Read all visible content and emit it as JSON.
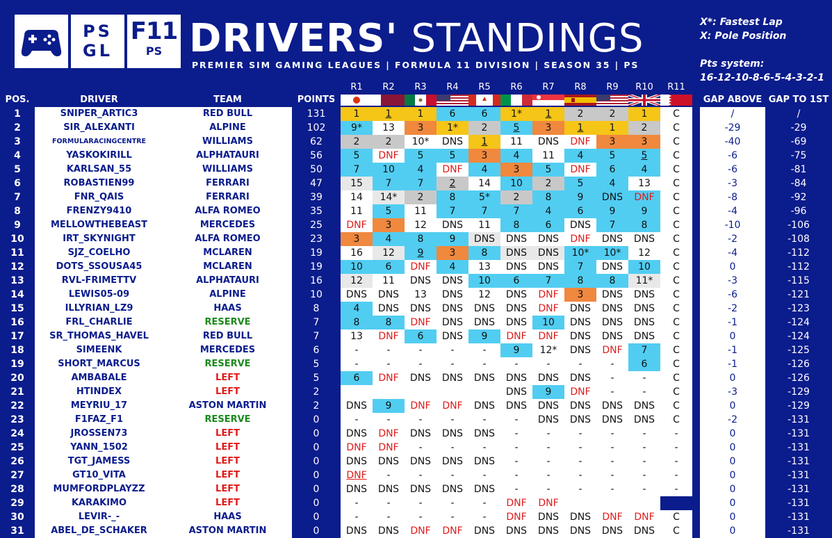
{
  "header": {
    "title_bold": "DRIVERS'",
    "title_light": "STANDINGS",
    "subtitle": "PREMIER SIM GAMING LEAGUES | FORMULA 11 DIVISION | SEASON 35 | PS",
    "logo_psgl_line1": "PS",
    "logo_psgl_line2": "GL",
    "logo_f11": "F11",
    "logo_ps": "PS"
  },
  "legend": {
    "fastest_lap": "X*: Fastest Lap",
    "pole": "X:  Pole Position",
    "pts_label": "Pts system:",
    "pts_values": "16-12-10-8-6-5-4-3-2-1"
  },
  "columns": {
    "pos": "POS.",
    "driver": "DRIVER",
    "team": "TEAM",
    "points": "POINTS",
    "gap_above": "GAP ABOVE",
    "gap_first": "GAP TO 1ST"
  },
  "rounds": [
    {
      "label": "R1",
      "flag": "japan-flag"
    },
    {
      "label": "R2",
      "flag": "qatar-flag"
    },
    {
      "label": "R3",
      "flag": "mexico-flag"
    },
    {
      "label": "R4",
      "flag": "usa-flag"
    },
    {
      "label": "R5",
      "flag": "canada-flag"
    },
    {
      "label": "R6",
      "flag": "italy-flag"
    },
    {
      "label": "R7",
      "flag": "singapore-flag"
    },
    {
      "label": "R8",
      "flag": "spain-flag"
    },
    {
      "label": "R9",
      "flag": "usa-flag"
    },
    {
      "label": "R10",
      "flag": "uk-flag"
    },
    {
      "label": "R11",
      "flag": "bahrain-flag"
    }
  ],
  "colors": {
    "team_default": "#0b1c8c",
    "reserve": "#1a8a1a",
    "left": "#e01b1b",
    "dnf": "#e01b1b",
    "gold": "#f5c518",
    "silver": "#c8c8c8",
    "bronze": "#f0883e",
    "points": "#51cdf2"
  },
  "rows": [
    {
      "pos": "1",
      "driver": "SNIPER_ARTIC3",
      "team": "RED BULL",
      "points": "131",
      "gap_above": "/",
      "gap_first": "/",
      "results": [
        "1",
        "1",
        "1",
        "6",
        "6",
        "1*",
        "1",
        "2",
        "2",
        "1",
        "C"
      ],
      "colors": [
        "gold",
        "gold",
        "gold",
        "blue",
        "blue",
        "gold",
        "gold",
        "silver",
        "silver",
        "gold",
        "white"
      ],
      "underline": [
        1,
        6
      ]
    },
    {
      "pos": "2",
      "driver": "SIR_ALEXANTI",
      "team": "ALPINE",
      "points": "102",
      "gap_above": "-29",
      "gap_first": "-29",
      "results": [
        "9*",
        "13",
        "3",
        "1*",
        "2",
        "5",
        "3",
        "1",
        "1",
        "2",
        "C"
      ],
      "colors": [
        "blue",
        "white",
        "bronze",
        "gold",
        "silver",
        "blue",
        "bronze",
        "gold",
        "gold",
        "silver",
        "white"
      ],
      "underline": [
        5,
        7
      ]
    },
    {
      "pos": "3",
      "driver": "FORMULARACINGCENTRE",
      "team": "WILLIAMS",
      "points": "62",
      "gap_above": "-40",
      "gap_first": "-69",
      "results": [
        "2",
        "2",
        "10*",
        "DNS",
        "1",
        "11",
        "DNS",
        "DNF",
        "3",
        "3",
        "C"
      ],
      "colors": [
        "silver",
        "silver",
        "white",
        "white",
        "gold",
        "white",
        "white",
        "white",
        "bronze",
        "bronze",
        "white"
      ],
      "underline": [
        4
      ]
    },
    {
      "pos": "4",
      "driver": "YASKOKIRILL",
      "team": "ALPHATAURI",
      "points": "56",
      "gap_above": "-6",
      "gap_first": "-75",
      "results": [
        "5",
        "DNF",
        "5",
        "5",
        "3",
        "4",
        "11",
        "4",
        "5",
        "5",
        "C"
      ],
      "colors": [
        "blue",
        "white",
        "blue",
        "blue",
        "bronze",
        "blue",
        "white",
        "blue",
        "blue",
        "blue",
        "white"
      ],
      "underline": [
        9
      ]
    },
    {
      "pos": "5",
      "driver": "KARLSAN_55",
      "team": "WILLIAMS",
      "points": "50",
      "gap_above": "-6",
      "gap_first": "-81",
      "results": [
        "7",
        "10",
        "4",
        "DNF",
        "4",
        "3",
        "5",
        "DNF",
        "6",
        "4",
        "C"
      ],
      "colors": [
        "blue",
        "blue",
        "blue",
        "white",
        "blue",
        "bronze",
        "blue",
        "white",
        "blue",
        "blue",
        "white"
      ],
      "underline": []
    },
    {
      "pos": "6",
      "driver": "ROBASTIEN99",
      "team": "FERRARI",
      "points": "47",
      "gap_above": "-3",
      "gap_first": "-84",
      "results": [
        "15",
        "7",
        "7",
        "2",
        "14",
        "10",
        "2",
        "5",
        "4",
        "13",
        "C"
      ],
      "colors": [
        "grey",
        "blue",
        "blue",
        "silver",
        "white",
        "blue",
        "silver",
        "blue",
        "blue",
        "white",
        "white"
      ],
      "underline": [
        3
      ]
    },
    {
      "pos": "7",
      "driver": "FNR_QAIS",
      "team": "FERRARI",
      "points": "39",
      "gap_above": "-8",
      "gap_first": "-92",
      "results": [
        "14",
        "14*",
        "2",
        "8",
        "5*",
        "2",
        "8",
        "9",
        "DNS",
        "DNF",
        "C"
      ],
      "colors": [
        "white",
        "grey",
        "silver",
        "blue",
        "blue",
        "silver",
        "blue",
        "blue",
        "blue",
        "blue",
        "white"
      ],
      "underline": []
    },
    {
      "pos": "8",
      "driver": "FRENZY9410",
      "team": "ALFA ROMEO",
      "points": "35",
      "gap_above": "-4",
      "gap_first": "-96",
      "results": [
        "11",
        "5",
        "11",
        "7",
        "7",
        "7",
        "4",
        "6",
        "9",
        "9",
        "C"
      ],
      "colors": [
        "white",
        "blue",
        "white",
        "blue",
        "blue",
        "blue",
        "blue",
        "blue",
        "blue",
        "blue",
        "white"
      ],
      "underline": []
    },
    {
      "pos": "9",
      "driver": "MELLOWTHEBEAST",
      "team": "MERCEDES",
      "points": "25",
      "gap_above": "-10",
      "gap_first": "-106",
      "results": [
        "DNF",
        "3",
        "12",
        "DNS",
        "11",
        "8",
        "6",
        "DNS",
        "7",
        "8",
        "C"
      ],
      "colors": [
        "white",
        "bronze",
        "white",
        "white",
        "white",
        "blue",
        "blue",
        "white",
        "blue",
        "blue",
        "white"
      ],
      "underline": []
    },
    {
      "pos": "10",
      "driver": "IRT_SKYNIGHT",
      "team": "ALFA ROMEO",
      "points": "23",
      "gap_above": "-2",
      "gap_first": "-108",
      "results": [
        "3",
        "4",
        "8",
        "9",
        "DNS",
        "DNS",
        "DNS",
        "DNF",
        "DNS",
        "DNS",
        "C"
      ],
      "colors": [
        "bronze",
        "blue",
        "blue",
        "blue",
        "grey",
        "white",
        "white",
        "white",
        "white",
        "white",
        "white"
      ],
      "underline": []
    },
    {
      "pos": "11",
      "driver": "SJZ_COELHO",
      "team": "MCLAREN",
      "points": "19",
      "gap_above": "-4",
      "gap_first": "-112",
      "results": [
        "16",
        "12",
        "9",
        "3",
        "8",
        "DNS",
        "DNS",
        "10*",
        "10*",
        "12",
        "C"
      ],
      "colors": [
        "white",
        "grey",
        "blue",
        "bronze",
        "blue",
        "grey",
        "grey",
        "blue",
        "blue",
        "white",
        "white"
      ],
      "underline": [
        2
      ]
    },
    {
      "pos": "12",
      "driver": "DOTS_SSOUSA45",
      "team": "MCLAREN",
      "points": "19",
      "gap_above": "0",
      "gap_first": "-112",
      "results": [
        "10",
        "6",
        "DNF",
        "4",
        "13",
        "DNS",
        "DNS",
        "7",
        "DNS",
        "10",
        "C"
      ],
      "colors": [
        "blue",
        "blue",
        "white",
        "blue",
        "white",
        "white",
        "white",
        "blue",
        "white",
        "blue",
        "white"
      ],
      "underline": []
    },
    {
      "pos": "13",
      "driver": "RVL-FRIMETTV",
      "team": "ALPHATAURI",
      "points": "16",
      "gap_above": "-3",
      "gap_first": "-115",
      "results": [
        "12",
        "11",
        "DNS",
        "DNS",
        "10",
        "6",
        "7",
        "8",
        "8",
        "11*",
        "C"
      ],
      "colors": [
        "grey",
        "white",
        "white",
        "white",
        "blue",
        "blue",
        "blue",
        "blue",
        "blue",
        "grey",
        "white"
      ],
      "underline": []
    },
    {
      "pos": "14",
      "driver": "LEWIS05-09",
      "team": "ALPINE",
      "points": "10",
      "gap_above": "-6",
      "gap_first": "-121",
      "results": [
        "DNS",
        "DNS",
        "13",
        "DNS",
        "12",
        "DNS",
        "DNF",
        "3",
        "DNS",
        "DNS",
        "C"
      ],
      "colors": [
        "white",
        "white",
        "white",
        "white",
        "white",
        "white",
        "white",
        "bronze",
        "white",
        "white",
        "white"
      ],
      "underline": []
    },
    {
      "pos": "15",
      "driver": "ILLYRIAN_LZ9",
      "team": "HAAS",
      "points": "8",
      "gap_above": "-2",
      "gap_first": "-123",
      "results": [
        "4",
        "DNS",
        "DNS",
        "DNS",
        "DNS",
        "DNS",
        "DNF",
        "DNS",
        "DNS",
        "DNS",
        "C"
      ],
      "colors": [
        "blue",
        "white",
        "white",
        "white",
        "white",
        "white",
        "white",
        "white",
        "white",
        "white",
        "white"
      ],
      "underline": []
    },
    {
      "pos": "16",
      "driver": "FRL_CHARLIE",
      "team": "RESERVE",
      "points": "7",
      "gap_above": "-1",
      "gap_first": "-124",
      "results": [
        "8",
        "8",
        "DNF",
        "DNS",
        "DNS",
        "DNS",
        "10",
        "DNS",
        "DNS",
        "DNS",
        "C"
      ],
      "colors": [
        "blue",
        "blue",
        "white",
        "white",
        "white",
        "white",
        "blue",
        "white",
        "white",
        "white",
        "white"
      ],
      "underline": []
    },
    {
      "pos": "17",
      "driver": "SR_THOMAS_HAVEL",
      "team": "RED BULL",
      "points": "7",
      "gap_above": "0",
      "gap_first": "-124",
      "results": [
        "13",
        "DNF",
        "6",
        "DNS",
        "9",
        "DNF",
        "DNF",
        "DNS",
        "DNS",
        "DNS",
        "C"
      ],
      "colors": [
        "white",
        "white",
        "blue",
        "white",
        "blue",
        "white",
        "white",
        "white",
        "white",
        "white",
        "white"
      ],
      "underline": []
    },
    {
      "pos": "18",
      "driver": "SIMEENK",
      "team": "MERCEDES",
      "points": "6",
      "gap_above": "-1",
      "gap_first": "-125",
      "results": [
        "-",
        "-",
        "-",
        "-",
        "-",
        "9",
        "12*",
        "DNS",
        "DNF",
        "7",
        "C"
      ],
      "colors": [
        "white",
        "white",
        "white",
        "white",
        "white",
        "blue",
        "white",
        "white",
        "white",
        "blue",
        "white"
      ],
      "underline": []
    },
    {
      "pos": "19",
      "driver": "SHORT_MARCUS",
      "team": "RESERVE",
      "points": "5",
      "gap_above": "-1",
      "gap_first": "-126",
      "results": [
        "-",
        "-",
        "-",
        "-",
        "-",
        "-",
        "-",
        "-",
        "-",
        "6",
        "C"
      ],
      "colors": [
        "white",
        "white",
        "white",
        "white",
        "white",
        "white",
        "white",
        "white",
        "white",
        "blue",
        "white"
      ],
      "underline": []
    },
    {
      "pos": "20",
      "driver": "AMBABALE",
      "team": "LEFT",
      "points": "5",
      "gap_above": "0",
      "gap_first": "-126",
      "results": [
        "6",
        "DNF",
        "DNS",
        "DNS",
        "DNS",
        "DNS",
        "DNS",
        "DNS",
        "-",
        "-",
        "C"
      ],
      "colors": [
        "blue",
        "white",
        "white",
        "white",
        "white",
        "white",
        "white",
        "white",
        "white",
        "white",
        "white"
      ],
      "underline": []
    },
    {
      "pos": "21",
      "driver": "HTINDEX",
      "team": "LEFT",
      "points": "2",
      "gap_above": "-3",
      "gap_first": "-129",
      "results": [
        "",
        "",
        "",
        "",
        "",
        "DNS",
        "9",
        "DNF",
        "-",
        "-",
        "C"
      ],
      "colors": [
        "white",
        "white",
        "white",
        "white",
        "white",
        "white",
        "blue",
        "white",
        "white",
        "white",
        "white"
      ],
      "underline": []
    },
    {
      "pos": "22",
      "driver": "MEYRIU_17",
      "team": "ASTON MARTIN",
      "points": "2",
      "gap_above": "0",
      "gap_first": "-129",
      "results": [
        "DNS",
        "9",
        "DNF",
        "DNF",
        "DNS",
        "DNS",
        "DNS",
        "DNS",
        "DNS",
        "DNS",
        "C"
      ],
      "colors": [
        "white",
        "blue",
        "white",
        "white",
        "white",
        "white",
        "white",
        "white",
        "white",
        "white",
        "white"
      ],
      "underline": []
    },
    {
      "pos": "23",
      "driver": "F1FAZ_F1",
      "team": "RESERVE",
      "points": "0",
      "gap_above": "-2",
      "gap_first": "-131",
      "results": [
        "-",
        "-",
        "-",
        "-",
        "-",
        "-",
        "DNS",
        "DNS",
        "DNS",
        "DNS",
        "C"
      ],
      "colors": [
        "white",
        "white",
        "white",
        "white",
        "white",
        "white",
        "white",
        "white",
        "white",
        "white",
        "white"
      ],
      "underline": []
    },
    {
      "pos": "24",
      "driver": "JROSSEN73",
      "team": "LEFT",
      "points": "0",
      "gap_above": "0",
      "gap_first": "-131",
      "results": [
        "DNS",
        "DNF",
        "DNS",
        "DNS",
        "DNS",
        "-",
        "-",
        "-",
        "-",
        "-",
        "-"
      ],
      "colors": [
        "white",
        "white",
        "white",
        "white",
        "white",
        "white",
        "white",
        "white",
        "white",
        "white",
        "white"
      ],
      "underline": []
    },
    {
      "pos": "25",
      "driver": "YANN_1502",
      "team": "LEFT",
      "points": "0",
      "gap_above": "0",
      "gap_first": "-131",
      "results": [
        "DNF",
        "DNF",
        "-",
        "-",
        "-",
        "-",
        "-",
        "-",
        "-",
        "-",
        "-"
      ],
      "colors": [
        "white",
        "white",
        "white",
        "white",
        "white",
        "white",
        "white",
        "white",
        "white",
        "white",
        "white"
      ],
      "underline": []
    },
    {
      "pos": "26",
      "driver": "TGT_JAMESS",
      "team": "LEFT",
      "points": "0",
      "gap_above": "0",
      "gap_first": "-131",
      "results": [
        "DNS",
        "DNS",
        "DNS",
        "DNS",
        "DNS",
        "-",
        "-",
        "-",
        "-",
        "-",
        "-"
      ],
      "colors": [
        "white",
        "white",
        "white",
        "white",
        "white",
        "white",
        "white",
        "white",
        "white",
        "white",
        "white"
      ],
      "underline": []
    },
    {
      "pos": "27",
      "driver": "GT10_VITA",
      "team": "LEFT",
      "points": "0",
      "gap_above": "0",
      "gap_first": "-131",
      "results": [
        "DNF",
        "-",
        "-",
        "-",
        "-",
        "-",
        "-",
        "-",
        "-",
        "-",
        "-"
      ],
      "colors": [
        "white",
        "white",
        "white",
        "white",
        "white",
        "white",
        "white",
        "white",
        "white",
        "white",
        "white"
      ],
      "underline": [
        0
      ]
    },
    {
      "pos": "28",
      "driver": "MUMFORDPLAYZZ",
      "team": "LEFT",
      "points": "0",
      "gap_above": "0",
      "gap_first": "-131",
      "results": [
        "DNS",
        "DNS",
        "DNS",
        "DNS",
        "DNS",
        "-",
        "-",
        "-",
        "-",
        "-",
        "-"
      ],
      "colors": [
        "white",
        "white",
        "white",
        "white",
        "white",
        "white",
        "white",
        "white",
        "white",
        "white",
        "white"
      ],
      "underline": []
    },
    {
      "pos": "29",
      "driver": "KARAKIMO",
      "team": "LEFT",
      "points": "0",
      "gap_above": "0",
      "gap_first": "-131",
      "results": [
        "-",
        "-",
        "-",
        "-",
        "-",
        "DNF",
        "DNF",
        "",
        "",
        "",
        ""
      ],
      "colors": [
        "white",
        "white",
        "white",
        "white",
        "white",
        "white",
        "white",
        "white",
        "white",
        "white",
        "white"
      ],
      "underline": []
    },
    {
      "pos": "30",
      "driver": "LEVIR-_-",
      "team": "HAAS",
      "points": "0",
      "gap_above": "0",
      "gap_first": "-131",
      "results": [
        "-",
        "-",
        "-",
        "-",
        "-",
        "DNF",
        "DNS",
        "DNS",
        "DNF",
        "DNF",
        "C"
      ],
      "colors": [
        "white",
        "white",
        "white",
        "white",
        "white",
        "white",
        "white",
        "white",
        "white",
        "white",
        "white"
      ],
      "underline": []
    },
    {
      "pos": "31",
      "driver": "ABEL_DE_SCHAKER",
      "team": "ASTON MARTIN",
      "points": "0",
      "gap_above": "0",
      "gap_first": "-131",
      "results": [
        "DNS",
        "DNS",
        "DNF",
        "DNF",
        "DNS",
        "DNS",
        "DNS",
        "DNS",
        "DNS",
        "DNS",
        "C"
      ],
      "colors": [
        "white",
        "white",
        "white",
        "white",
        "white",
        "white",
        "white",
        "white",
        "white",
        "white",
        "white"
      ],
      "underline": []
    }
  ]
}
